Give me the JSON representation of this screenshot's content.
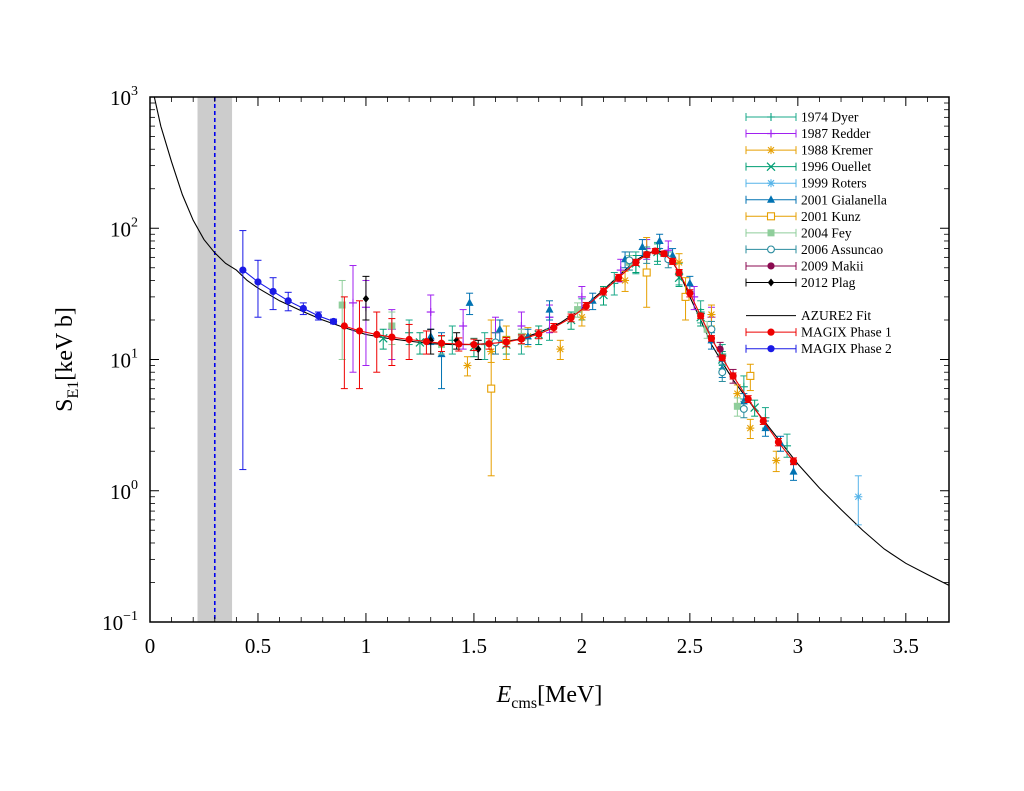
{
  "chart_data": {
    "type": "scatter",
    "title": "",
    "xlabel": {
      "main": "E",
      "sub": "cms",
      "unit": "[MeV]"
    },
    "ylabel": {
      "main": "S",
      "sub": "E1",
      "unit": "[keV b]"
    },
    "x_scale": "linear",
    "y_scale": "log",
    "xlim": [
      0,
      3.7
    ],
    "ylim": [
      0.1,
      1000
    ],
    "x_ticks": [
      {
        "value": 0,
        "label": "0"
      },
      {
        "value": 0.5,
        "label": "0.5"
      },
      {
        "value": 1,
        "label": "1"
      },
      {
        "value": 1.5,
        "label": "1.5"
      },
      {
        "value": 2,
        "label": "2"
      },
      {
        "value": 2.5,
        "label": "2.5"
      },
      {
        "value": 3,
        "label": "3"
      },
      {
        "value": 3.5,
        "label": "3.5"
      }
    ],
    "y_ticks": [
      {
        "value": 0.1,
        "base": "10",
        "exp": "−1"
      },
      {
        "value": 1,
        "base": "10",
        "exp": "0"
      },
      {
        "value": 10,
        "base": "10",
        "exp": "1"
      },
      {
        "value": 100,
        "base": "10",
        "exp": "2"
      },
      {
        "value": 1000,
        "base": "10",
        "exp": "3"
      }
    ],
    "grid": false,
    "legend_position": "top-right",
    "annotations": {
      "shaded_band": {
        "x_range": [
          0.22,
          0.38
        ],
        "color": "#cccccc"
      },
      "dashed_line": {
        "x": 0.3,
        "color": "#0000ee"
      }
    },
    "fit": {
      "name": "AZURE2 Fit",
      "color": "#000000",
      "x": [
        0.02,
        0.05,
        0.1,
        0.15,
        0.2,
        0.25,
        0.3,
        0.35,
        0.4,
        0.45,
        0.5,
        0.6,
        0.7,
        0.8,
        0.9,
        1.0,
        1.1,
        1.2,
        1.3,
        1.4,
        1.5,
        1.6,
        1.7,
        1.8,
        1.9,
        2.0,
        2.1,
        2.2,
        2.25,
        2.3,
        2.35,
        2.4,
        2.45,
        2.5,
        2.55,
        2.6,
        2.65,
        2.7,
        2.8,
        2.9,
        3.0,
        3.1,
        3.2,
        3.3,
        3.4,
        3.5,
        3.6,
        3.7
      ],
      "y": [
        1000,
        600,
        320,
        180,
        115,
        82,
        65,
        54,
        48,
        40,
        35,
        28,
        23.5,
        20,
        17.5,
        15.5,
        14.5,
        13.8,
        13.2,
        13.0,
        13.0,
        13.4,
        14.2,
        16.0,
        19.0,
        24.5,
        34,
        48,
        57,
        64,
        68,
        62,
        46,
        30,
        20,
        13,
        9.5,
        7.0,
        4.2,
        2.6,
        1.6,
        1.05,
        0.72,
        0.5,
        0.36,
        0.28,
        0.23,
        0.19
      ]
    },
    "series": [
      {
        "name": "1974 Dyer",
        "color": "#1aa88a",
        "marker": "plus",
        "points": [
          [
            1.2,
            16,
            13,
            20
          ],
          [
            1.4,
            14,
            11,
            18
          ],
          [
            1.55,
            13,
            10,
            16
          ],
          [
            1.72,
            14,
            11,
            17
          ],
          [
            1.85,
            17,
            14,
            21
          ],
          [
            2.0,
            24,
            20,
            29
          ],
          [
            2.15,
            38,
            31,
            46
          ],
          [
            2.25,
            55,
            45,
            66
          ],
          [
            2.35,
            65,
            53,
            78
          ],
          [
            2.45,
            45,
            37,
            54
          ],
          [
            2.55,
            23,
            19,
            28
          ],
          [
            2.65,
            11,
            9,
            13
          ],
          [
            2.75,
            6.2,
            5,
            7.5
          ],
          [
            2.85,
            3.6,
            3,
            4.3
          ],
          [
            2.95,
            2.2,
            1.8,
            2.7
          ]
        ]
      },
      {
        "name": "1987 Redder",
        "color": "#a020f0",
        "marker": "plus",
        "points": [
          [
            0.94,
            27,
            8,
            52
          ],
          [
            1.0,
            25,
            9,
            40
          ],
          [
            1.12,
            17,
            10,
            24
          ],
          [
            1.3,
            23,
            14,
            31
          ],
          [
            1.45,
            18,
            12,
            24
          ],
          [
            1.6,
            16,
            11,
            21
          ],
          [
            1.72,
            18,
            13,
            23
          ],
          [
            1.85,
            21,
            16,
            26
          ],
          [
            2.0,
            30,
            24,
            36
          ],
          [
            2.18,
            48,
            39,
            58
          ],
          [
            2.3,
            70,
            58,
            82
          ],
          [
            2.4,
            68,
            56,
            80
          ],
          [
            2.52,
            30,
            24,
            36
          ],
          [
            2.6,
            21,
            17,
            25
          ]
        ]
      },
      {
        "name": "1988 Kremer",
        "color": "#e69f00",
        "marker": "star",
        "points": [
          [
            1.47,
            9,
            7.5,
            10.5
          ],
          [
            1.58,
            11.5,
            9.5,
            13.5
          ],
          [
            1.75,
            15,
            12.5,
            17.5
          ],
          [
            1.9,
            12,
            10,
            14
          ],
          [
            2.0,
            21,
            18,
            24
          ],
          [
            2.2,
            40,
            33,
            47
          ],
          [
            2.45,
            55,
            46,
            64
          ],
          [
            2.6,
            22,
            18,
            26
          ],
          [
            2.72,
            5.5,
            4.6,
            6.4
          ],
          [
            2.78,
            3.0,
            2.5,
            3.5
          ],
          [
            2.9,
            1.7,
            1.4,
            2.0
          ]
        ]
      },
      {
        "name": "1996 Ouellet",
        "color": "#009e73",
        "marker": "cross",
        "points": [
          [
            1.08,
            14.5,
            12,
            17
          ],
          [
            1.25,
            13.5,
            11,
            16
          ],
          [
            1.5,
            12.5,
            10.5,
            14.5
          ],
          [
            1.65,
            13,
            11,
            15
          ],
          [
            1.8,
            15.5,
            13,
            18
          ],
          [
            1.95,
            20,
            17,
            23
          ],
          [
            2.1,
            31,
            26,
            36
          ],
          [
            2.25,
            54,
            46,
            62
          ],
          [
            2.35,
            66,
            56,
            76
          ],
          [
            2.45,
            42,
            36,
            48
          ],
          [
            2.55,
            21,
            18,
            24
          ],
          [
            2.65,
            10,
            8.5,
            11.5
          ],
          [
            2.8,
            4.3,
            3.7,
            4.9
          ]
        ]
      },
      {
        "name": "1999 Roters",
        "color": "#56b4e9",
        "marker": "star",
        "points": [
          [
            3.28,
            0.9,
            0.55,
            1.3
          ]
        ]
      },
      {
        "name": "2001 Gialanella",
        "color": "#0072b2",
        "marker": "triangle",
        "points": [
          [
            1.3,
            15,
            13,
            17
          ],
          [
            1.35,
            11,
            6,
            16
          ],
          [
            1.48,
            27,
            22,
            32
          ],
          [
            1.62,
            17,
            14,
            20
          ],
          [
            1.75,
            15,
            13,
            17
          ],
          [
            1.85,
            24,
            20,
            28
          ],
          [
            2.05,
            28,
            24,
            32
          ],
          [
            2.2,
            58,
            50,
            66
          ],
          [
            2.28,
            72,
            62,
            82
          ],
          [
            2.36,
            80,
            70,
            90
          ],
          [
            2.42,
            62,
            54,
            70
          ],
          [
            2.5,
            38,
            33,
            43
          ],
          [
            2.6,
            14,
            12,
            16
          ],
          [
            2.65,
            8.5,
            7.3,
            9.7
          ],
          [
            2.75,
            4.8,
            4.1,
            5.5
          ],
          [
            2.85,
            3.0,
            2.6,
            3.4
          ],
          [
            2.92,
            2.3,
            2.0,
            2.6
          ],
          [
            2.98,
            1.4,
            1.2,
            1.6
          ]
        ]
      },
      {
        "name": "2001 Kunz",
        "color": "#e69f00",
        "marker": "square-open",
        "points": [
          [
            1.58,
            6,
            1.3,
            20
          ],
          [
            1.65,
            14,
            10,
            18
          ],
          [
            2.3,
            46,
            25,
            85
          ],
          [
            2.48,
            30,
            20,
            42
          ],
          [
            2.78,
            7.5,
            5.8,
            9.2
          ]
        ]
      },
      {
        "name": "2004 Fey",
        "color": "#8fce9b",
        "marker": "square",
        "points": [
          [
            0.89,
            26,
            10,
            40
          ],
          [
            1.12,
            18,
            13,
            23
          ],
          [
            1.35,
            13,
            11,
            15
          ],
          [
            1.72,
            15,
            13,
            17
          ],
          [
            1.98,
            24,
            21,
            27
          ],
          [
            2.22,
            55,
            48,
            62
          ],
          [
            2.58,
            17,
            14.5,
            19.5
          ],
          [
            2.72,
            4.4,
            3.7,
            5.1
          ]
        ]
      },
      {
        "name": "2006 Assuncao",
        "color": "#2a8c9e",
        "marker": "circle-open",
        "points": [
          [
            1.6,
            13.5,
            11,
            16
          ],
          [
            2.22,
            57,
            48,
            66
          ],
          [
            2.3,
            63,
            54,
            72
          ],
          [
            2.4,
            58,
            50,
            66
          ],
          [
            2.6,
            17,
            14.5,
            19.5
          ],
          [
            2.65,
            8,
            6.8,
            9.2
          ],
          [
            2.75,
            4.2,
            3.6,
            4.8
          ]
        ]
      },
      {
        "name": "2009 Makii",
        "color": "#8b0a50",
        "marker": "circle",
        "points": [
          [
            2.64,
            12,
            10.5,
            13.5
          ],
          [
            2.7,
            7.5,
            6.6,
            8.4
          ]
        ]
      },
      {
        "name": "2012 Plag",
        "color": "#000000",
        "marker": "diamond",
        "points": [
          [
            1.0,
            29,
            20,
            43
          ],
          [
            1.3,
            14,
            11,
            17
          ],
          [
            1.42,
            14,
            12,
            16
          ],
          [
            1.52,
            12,
            10,
            14
          ]
        ]
      },
      {
        "name": "MAGIX Phase 1",
        "color": "#ee0000",
        "marker": "circle",
        "line": true,
        "points": [
          [
            0.9,
            18,
            6,
            30
          ],
          [
            0.97,
            16.5,
            6,
            28
          ],
          [
            1.05,
            15.5,
            8,
            23
          ],
          [
            1.12,
            14.8,
            9,
            20.5
          ],
          [
            1.2,
            14.2,
            10,
            18.5
          ],
          [
            1.28,
            13.7,
            11,
            16.5
          ],
          [
            1.35,
            13.3,
            11.5,
            15.2
          ],
          [
            1.43,
            13.1,
            11.6,
            14.6
          ],
          [
            1.5,
            13.0,
            11.7,
            14.3
          ],
          [
            1.57,
            13.2,
            12,
            14.4
          ],
          [
            1.65,
            13.6,
            12.5,
            14.7
          ],
          [
            1.72,
            14.3,
            13.2,
            15.4
          ],
          [
            1.8,
            15.6,
            14.4,
            16.8
          ],
          [
            1.87,
            17.5,
            16.2,
            18.8
          ],
          [
            1.95,
            20.8,
            19.4,
            22.2
          ],
          [
            2.02,
            25.5,
            23.8,
            27.2
          ],
          [
            2.1,
            33,
            31,
            35
          ],
          [
            2.17,
            42,
            39.5,
            44.5
          ],
          [
            2.25,
            55,
            52,
            58
          ],
          [
            2.3,
            63,
            60,
            66
          ],
          [
            2.34,
            67,
            64,
            70
          ],
          [
            2.38,
            64,
            61,
            67
          ],
          [
            2.42,
            56,
            53,
            59
          ],
          [
            2.45,
            46,
            43.5,
            48.5
          ],
          [
            2.5,
            32,
            30,
            34
          ],
          [
            2.55,
            21.5,
            20.5,
            22.5
          ],
          [
            2.6,
            14.5,
            13.8,
            15.2
          ],
          [
            2.65,
            10.3,
            9.8,
            10.8
          ],
          [
            2.7,
            7.5,
            7.1,
            7.9
          ],
          [
            2.77,
            5.0,
            4.7,
            5.3
          ],
          [
            2.84,
            3.4,
            3.2,
            3.6
          ],
          [
            2.91,
            2.35,
            2.2,
            2.5
          ],
          [
            2.98,
            1.68,
            1.58,
            1.78
          ]
        ]
      },
      {
        "name": "MAGIX Phase 2",
        "color": "#1a1ae6",
        "marker": "circle",
        "line": true,
        "points": [
          [
            0.43,
            48,
            1.45,
            96
          ],
          [
            0.5,
            39,
            21,
            57
          ],
          [
            0.57,
            33,
            24,
            42
          ],
          [
            0.64,
            28,
            23.5,
            32.5
          ],
          [
            0.71,
            24.5,
            22,
            27
          ],
          [
            0.78,
            21.5,
            20,
            23
          ],
          [
            0.85,
            19.5,
            18.7,
            20.3
          ]
        ]
      }
    ],
    "legend": [
      {
        "label": "1974 Dyer",
        "color": "#1aa88a",
        "marker": "plus"
      },
      {
        "label": "1987 Redder",
        "color": "#a020f0",
        "marker": "plus"
      },
      {
        "label": "1988 Kremer",
        "color": "#e69f00",
        "marker": "star"
      },
      {
        "label": "1996 Ouellet",
        "color": "#009e73",
        "marker": "cross"
      },
      {
        "label": "1999 Roters",
        "color": "#56b4e9",
        "marker": "star"
      },
      {
        "label": "2001 Gialanella",
        "color": "#0072b2",
        "marker": "triangle"
      },
      {
        "label": "2001 Kunz",
        "color": "#e69f00",
        "marker": "square-open"
      },
      {
        "label": "2004 Fey",
        "color": "#8fce9b",
        "marker": "square"
      },
      {
        "label": "2006 Assuncao",
        "color": "#2a8c9e",
        "marker": "circle-open"
      },
      {
        "label": "2009 Makii",
        "color": "#8b0a50",
        "marker": "circle"
      },
      {
        "label": "2012 Plag",
        "color": "#000000",
        "marker": "diamond"
      },
      {
        "label": "",
        "color": "",
        "marker": "gap"
      },
      {
        "label": "AZURE2 Fit",
        "color": "#000000",
        "marker": "line"
      },
      {
        "label": "MAGIX Phase 1",
        "color": "#ee0000",
        "marker": "circle-line"
      },
      {
        "label": "MAGIX Phase 2",
        "color": "#1a1ae6",
        "marker": "circle-line"
      }
    ]
  }
}
